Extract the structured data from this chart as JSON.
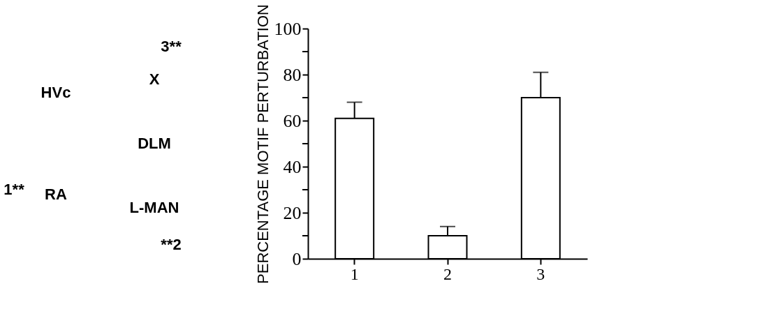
{
  "chart_data": [
    {
      "type": "other",
      "annotations": [
        "HVc",
        "X",
        "DLM",
        "RA",
        "L-MAN",
        "1**",
        "**2",
        "3**"
      ]
    },
    {
      "type": "bar",
      "ylabel": "PERCENTAGE MOTIF PERTURBATION",
      "categories": [
        "1",
        "2",
        "3"
      ],
      "values": [
        61,
        10,
        70
      ],
      "errors": [
        [
          61,
          68
        ],
        [
          10,
          14
        ],
        [
          70,
          81
        ]
      ],
      "color": "#ffffff",
      "ylim": [
        0,
        100
      ],
      "yticks": [
        0,
        {
          "value": 10,
          "label": null
        },
        20,
        {
          "value": 30,
          "label": null
        },
        40,
        {
          "value": 50,
          "label": null
        },
        60,
        {
          "value": 70,
          "label": null
        },
        80,
        {
          "value": 90,
          "label": null
        },
        100
      ],
      "grid": false
    }
  ]
}
